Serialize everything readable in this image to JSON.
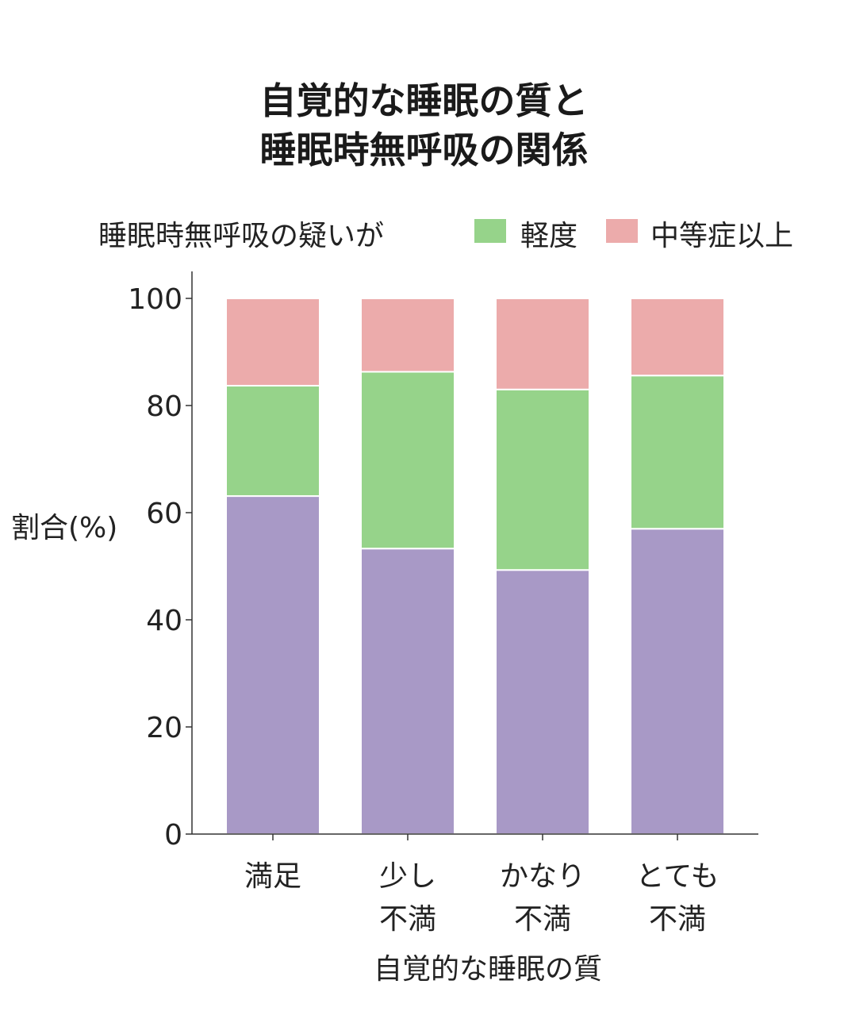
{
  "chart_data": {
    "type": "bar",
    "stacked": true,
    "title": [
      "自覚的な睡眠の質と",
      "睡眠時無呼吸の関係"
    ],
    "legend": {
      "title": "睡眠時無呼吸の疑いが",
      "placement": "top",
      "entries": [
        {
          "label": "軽度",
          "color": "#96d38a"
        },
        {
          "label": "中等症以上",
          "color": "#ecabab"
        }
      ]
    },
    "ylabel": "割合(%)",
    "xlabel": "自覚的な睡眠の質",
    "ylim": [
      0,
      100
    ],
    "yticks": [
      "0",
      "20",
      "40",
      "60",
      "80",
      "100"
    ],
    "categories": [
      [
        "満足"
      ],
      [
        "少し",
        "不満"
      ],
      [
        "かなり",
        "不満"
      ],
      [
        "とても",
        "不満"
      ]
    ],
    "series": [
      {
        "values": [
          63.1,
          53.3,
          49.3,
          57.0
        ],
        "color": "#a899c6"
      },
      {
        "name": "軽度",
        "values": [
          20.6,
          33.0,
          33.7,
          28.6
        ],
        "color": "#96d38a"
      },
      {
        "name": "中等症以上",
        "values": [
          16.3,
          13.7,
          17.0,
          14.4
        ],
        "color": "#ecabab"
      }
    ],
    "grid": false
  }
}
